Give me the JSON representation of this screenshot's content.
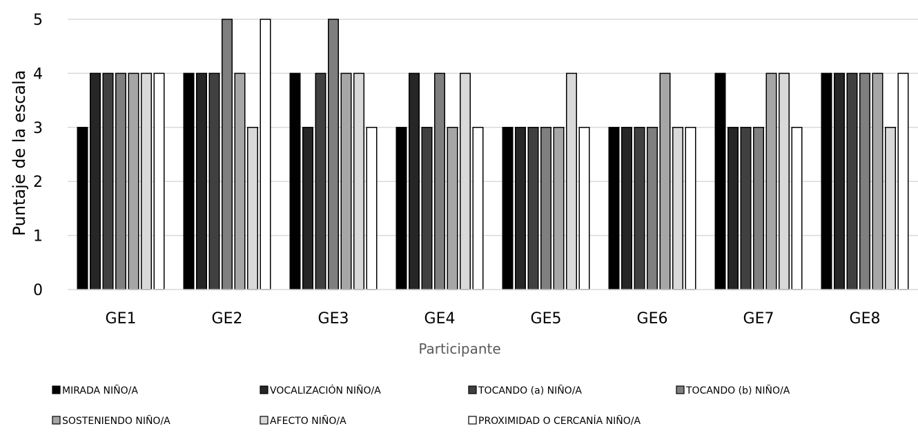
{
  "chart_data": {
    "type": "bar",
    "title": "",
    "xlabel": "Participante",
    "ylabel": "Puntaje de la escala",
    "ylim": [
      0,
      5
    ],
    "yticks": [
      "0",
      "1",
      "2",
      "3",
      "4",
      "5"
    ],
    "grid": true,
    "legend_position": "bottom",
    "categories": [
      "GE1",
      "GE2",
      "GE3",
      "GE4",
      "GE5",
      "GE6",
      "GE7",
      "GE8"
    ],
    "series": [
      {
        "name": "MIRADA NIÑO/A",
        "color": "#000000",
        "values": [
          3,
          4,
          4,
          3,
          3,
          3,
          4,
          4
        ]
      },
      {
        "name": "VOCALIZACIÓN NIÑO/A",
        "color": "#262626",
        "values": [
          4,
          4,
          3,
          4,
          3,
          3,
          3,
          4
        ]
      },
      {
        "name": "TOCANDO (a) NIÑO/A",
        "color": "#404040",
        "values": [
          4,
          4,
          4,
          3,
          3,
          3,
          3,
          4
        ]
      },
      {
        "name": "TOCANDO (b) NIÑO/A",
        "color": "#7f7f7f",
        "values": [
          4,
          5,
          5,
          4,
          3,
          3,
          3,
          4
        ]
      },
      {
        "name": "SOSTENIENDO NIÑO/A",
        "color": "#a6a6a6",
        "values": [
          4,
          4,
          4,
          3,
          3,
          4,
          4,
          4
        ]
      },
      {
        "name": "AFECTO NIÑO/A",
        "color": "#d9d9d9",
        "values": [
          4,
          3,
          4,
          4,
          4,
          3,
          4,
          3
        ]
      },
      {
        "name": "PROXIMIDAD  O CERCANÍA NIÑO/A",
        "color": "#ffffff",
        "values": [
          4,
          5,
          3,
          3,
          3,
          3,
          3,
          4
        ]
      }
    ]
  }
}
